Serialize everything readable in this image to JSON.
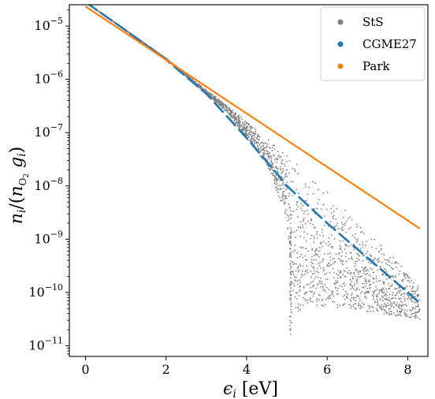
{
  "chart_data": {
    "type": "scatter",
    "xlabel": "ϵᵢ [eV]",
    "ylabel": "nᵢ/(n_O₂ gᵢ)",
    "xlim": [
      -0.4,
      8.5
    ],
    "ylim_log10": [
      -11.2,
      -4.6
    ],
    "yscale": "log",
    "grid": false,
    "legend_placement": "top-right",
    "x_ticks": [
      0,
      2,
      4,
      6,
      8
    ],
    "y_ticks": [
      -11,
      -10,
      -9,
      -8,
      -7,
      -6,
      -5
    ],
    "colors": {
      "sts": "#808080",
      "cgme27": "#1f77b4",
      "park": "#ff7f0e"
    },
    "series": [
      {
        "name": "StS",
        "kind": "scatter-cloud",
        "color": "#808080",
        "envelope_upper": [
          [
            0.0,
            -4.55
          ],
          [
            2.0,
            -5.6
          ],
          [
            4.0,
            -6.78
          ],
          [
            6.0,
            -8.09
          ],
          [
            8.3,
            -9.85
          ]
        ],
        "envelope_lower": [
          [
            0.0,
            -4.55
          ],
          [
            2.0,
            -5.62
          ],
          [
            3.5,
            -6.6
          ],
          [
            4.5,
            -7.6
          ],
          [
            5.0,
            -8.6
          ],
          [
            5.08,
            -9.5
          ],
          [
            5.1,
            -10.8
          ]
        ],
        "bottom_tail": [
          [
            5.1,
            -10.4
          ],
          [
            6.0,
            -10.25
          ],
          [
            8.3,
            -10.5
          ]
        ]
      },
      {
        "name": "CGME27",
        "kind": "dashed-points",
        "color": "#1f77b4",
        "x": [
          0.0,
          1.0,
          2.0,
          3.0,
          4.0,
          4.9,
          5.0,
          6.0,
          7.0,
          8.0,
          8.3
        ],
        "y": [
          -4.55,
          -5.08,
          -5.63,
          -6.27,
          -7.1,
          -7.9,
          -8.0,
          -8.7,
          -9.35,
          -10.0,
          -10.2
        ]
      },
      {
        "name": "Park",
        "kind": "line",
        "color": "#ff7f0e",
        "x": [
          0.0,
          8.3
        ],
        "y": [
          -4.63,
          -8.8
        ]
      }
    ]
  }
}
